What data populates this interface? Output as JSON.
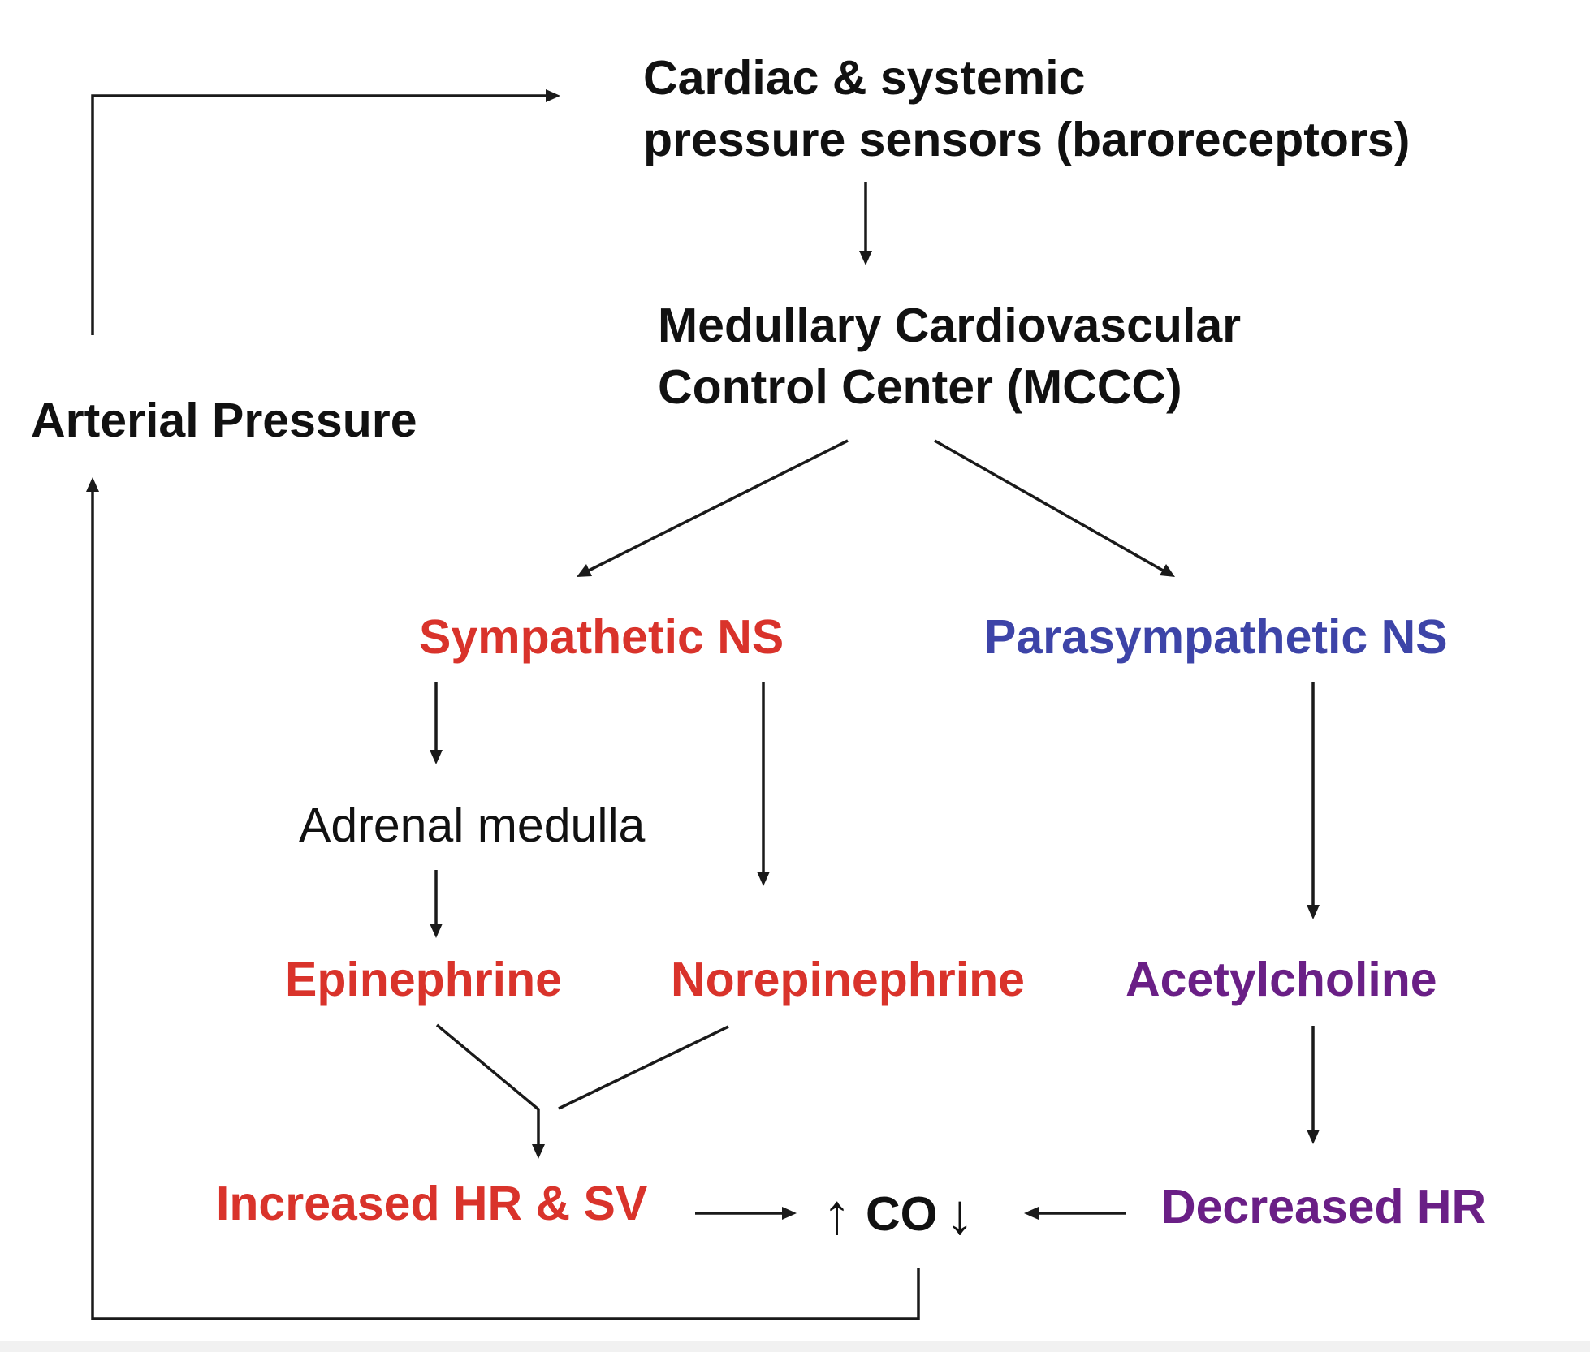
{
  "colors": {
    "text": "#111111",
    "sympathetic": "#d9332b",
    "parasympathetic": "#3d44a8",
    "cholinergic": "#6a1f86",
    "arrow": "#1a1a1a"
  },
  "nodes": {
    "baroreceptors": {
      "line1": "Cardiac & systemic",
      "line2": "pressure sensors (baroreceptors)"
    },
    "mccc": {
      "line1": "Medullary Cardiovascular",
      "line2": "Control Center (MCCC)"
    },
    "arterial_pressure": "Arterial Pressure",
    "sympathetic_ns": "Sympathetic NS",
    "parasympathetic_ns": "Parasympathetic NS",
    "adrenal_medulla": "Adrenal medulla",
    "epinephrine": "Epinephrine",
    "norepinephrine": "Norepinephrine",
    "acetylcholine": "Acetylcholine",
    "increased_hr_sv": "Increased HR & SV",
    "cardiac_output": {
      "up": "↑",
      "label": "CO",
      "down": "↓"
    },
    "decreased_hr": "Decreased HR"
  }
}
